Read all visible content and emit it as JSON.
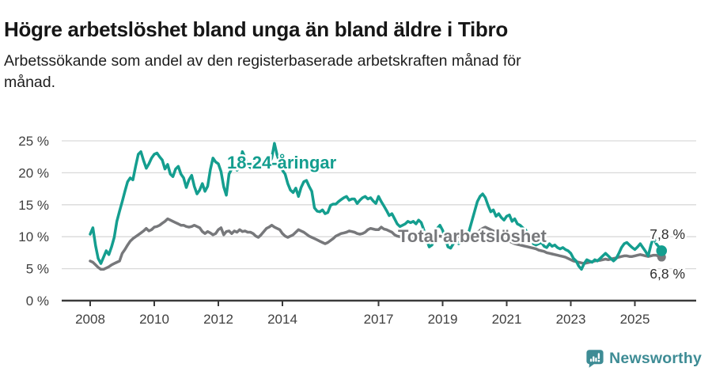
{
  "header": {
    "title": "Högre arbetslöshet bland unga än bland äldre i Tibro",
    "subtitle_lines": [
      "Arbetssökande som andel av den registerbaserade arbetskraften månad för",
      "månad."
    ]
  },
  "chart_data": {
    "type": "line",
    "title": "Högre arbetslöshet bland unga än bland äldre i Tibro",
    "subtitle": "Arbetssökande som andel av den registerbaserade arbetskraften månad för månad.",
    "xlabel": "",
    "ylabel": "",
    "unit": "%",
    "grid": true,
    "x_start_year": 2008,
    "points_per_year": 12,
    "x_end_label": "2025 (november)",
    "x_tick_years": [
      2008,
      2010,
      2012,
      2014,
      2017,
      2019,
      2021,
      2023,
      2025
    ],
    "y_ticks": [
      0,
      5,
      10,
      15,
      20,
      25
    ],
    "y_tick_suffix": " %",
    "ylim": [
      0,
      25
    ],
    "series": [
      {
        "name": "Total arbetslöshet",
        "color": "#77787b",
        "end_label": "6,8 %",
        "end_value": 6.8,
        "values": [
          6.2,
          6.0,
          5.6,
          5.2,
          4.9,
          4.9,
          5.1,
          5.3,
          5.6,
          5.8,
          6.0,
          6.2,
          7.4,
          8.0,
          8.7,
          9.3,
          9.7,
          10.0,
          10.3,
          10.6,
          10.9,
          11.3,
          10.9,
          11.1,
          11.5,
          11.6,
          11.8,
          12.1,
          12.4,
          12.8,
          12.6,
          12.4,
          12.2,
          12.0,
          11.8,
          11.8,
          11.6,
          11.5,
          11.6,
          11.8,
          11.6,
          11.4,
          10.8,
          10.5,
          10.8,
          10.6,
          10.3,
          10.5,
          11.1,
          11.4,
          10.3,
          10.8,
          10.9,
          10.5,
          10.9,
          10.7,
          11.1,
          10.8,
          10.9,
          10.7,
          10.7,
          10.5,
          10.1,
          9.9,
          10.3,
          10.8,
          11.3,
          11.5,
          11.8,
          11.5,
          11.3,
          11.1,
          10.5,
          10.1,
          9.9,
          10.1,
          10.3,
          10.7,
          11.1,
          10.9,
          10.7,
          10.4,
          10.1,
          9.9,
          9.7,
          9.5,
          9.3,
          9.1,
          8.9,
          9.1,
          9.4,
          9.7,
          10.1,
          10.3,
          10.5,
          10.6,
          10.7,
          10.9,
          10.8,
          10.7,
          10.5,
          10.4,
          10.5,
          10.7,
          11.1,
          11.3,
          11.2,
          11.1,
          11.1,
          11.5,
          11.2,
          11.1,
          10.9,
          10.7,
          10.3,
          10.1,
          10.0,
          10.2,
          10.3,
          10.1,
          10.0,
          9.8,
          9.7,
          9.9,
          10.1,
          10.0,
          9.8,
          9.7,
          9.8,
          9.9,
          10.0,
          10.1,
          10.0,
          9.9,
          10.0,
          10.1,
          10.2,
          10.1,
          10.0,
          9.9,
          10.0,
          10.1,
          10.2,
          10.3,
          10.4,
          10.6,
          11.0,
          11.3,
          11.5,
          11.3,
          11.1,
          10.9,
          10.7,
          10.4,
          10.1,
          9.8,
          9.5,
          9.3,
          9.1,
          8.9,
          8.8,
          8.7,
          8.6,
          8.5,
          8.4,
          8.3,
          8.2,
          8.1,
          7.9,
          7.8,
          7.7,
          7.5,
          7.4,
          7.3,
          7.2,
          7.1,
          7.0,
          6.9,
          6.8,
          6.6,
          6.4,
          6.2,
          6.1,
          6.0,
          5.9,
          5.8,
          5.9,
          6.0,
          6.1,
          6.2,
          6.3,
          6.3,
          6.4,
          6.5,
          6.4,
          6.5,
          6.6,
          6.7,
          6.8,
          6.9,
          7.0,
          7.0,
          6.9,
          6.9,
          7.0,
          7.1,
          7.2,
          7.1,
          7.0,
          6.9,
          7.0,
          7.1,
          7.1,
          6.9,
          6.8
        ]
      },
      {
        "name": "18-24-åringar",
        "color": "#149e8f",
        "end_label": "7,8 %",
        "end_value": 7.8,
        "values": [
          10.4,
          11.4,
          8.6,
          6.6,
          5.8,
          6.8,
          7.8,
          7.2,
          8.4,
          9.9,
          12.4,
          14.0,
          15.5,
          17.1,
          18.6,
          19.2,
          18.9,
          21.0,
          22.9,
          23.3,
          21.9,
          20.7,
          21.4,
          22.3,
          22.9,
          23.1,
          22.5,
          22.0,
          20.6,
          21.3,
          19.8,
          19.4,
          20.6,
          21.0,
          19.8,
          19.2,
          17.7,
          18.9,
          19.6,
          17.9,
          16.7,
          17.3,
          18.3,
          17.1,
          17.9,
          20.5,
          22.3,
          21.7,
          21.4,
          20.2,
          17.8,
          16.5,
          19.8,
          20.6,
          21.0,
          20.4,
          21.2,
          23.3,
          22.4,
          21.3,
          20.8,
          21.5,
          22.0,
          21.2,
          20.6,
          21.3,
          22.0,
          21.4,
          22.3,
          24.6,
          22.8,
          21.6,
          20.4,
          19.8,
          18.3,
          17.3,
          16.9,
          17.6,
          16.3,
          17.7,
          18.6,
          18.8,
          17.9,
          17.1,
          14.5,
          14.0,
          13.9,
          14.2,
          13.6,
          13.8,
          14.9,
          15.1,
          15.1,
          15.5,
          15.8,
          16.1,
          16.3,
          15.7,
          15.9,
          15.9,
          15.2,
          15.7,
          16.1,
          16.3,
          15.9,
          16.1,
          15.6,
          15.2,
          16.3,
          15.5,
          14.8,
          14.1,
          13.3,
          13.6,
          12.8,
          12.0,
          11.6,
          11.8,
          12.0,
          12.4,
          12.2,
          12.4,
          12.0,
          12.6,
          12.2,
          11.0,
          9.5,
          8.4,
          8.7,
          9.9,
          11.3,
          11.8,
          11.0,
          9.7,
          8.4,
          8.2,
          8.9,
          9.5,
          8.9,
          9.3,
          9.5,
          9.9,
          11.0,
          12.5,
          14.0,
          15.5,
          16.3,
          16.7,
          16.1,
          14.9,
          13.9,
          14.2,
          13.2,
          13.6,
          13.0,
          12.6,
          13.2,
          13.4,
          12.4,
          12.8,
          12.0,
          11.8,
          11.4,
          11.1,
          10.5,
          9.5,
          8.9,
          8.7,
          8.9,
          9.1,
          8.5,
          8.3,
          8.9,
          8.5,
          8.7,
          8.3,
          8.1,
          8.3,
          8.0,
          7.8,
          7.4,
          6.6,
          6.2,
          5.4,
          4.9,
          5.8,
          6.4,
          6.2,
          6.0,
          6.4,
          6.2,
          6.6,
          7.0,
          7.4,
          7.0,
          6.6,
          6.2,
          6.6,
          7.4,
          8.3,
          8.9,
          9.1,
          8.7,
          8.3,
          8.0,
          8.4,
          8.9,
          8.3,
          7.7,
          7.0,
          8.7,
          9.9,
          8.9,
          8.4,
          7.8
        ]
      }
    ],
    "legend_position": "inline-labels"
  },
  "footer": {
    "brand": "Newsworthy",
    "brand_color": "#3e8c95",
    "logo_icon": "newsworthy-speech-bubble-bar-chart-icon"
  }
}
